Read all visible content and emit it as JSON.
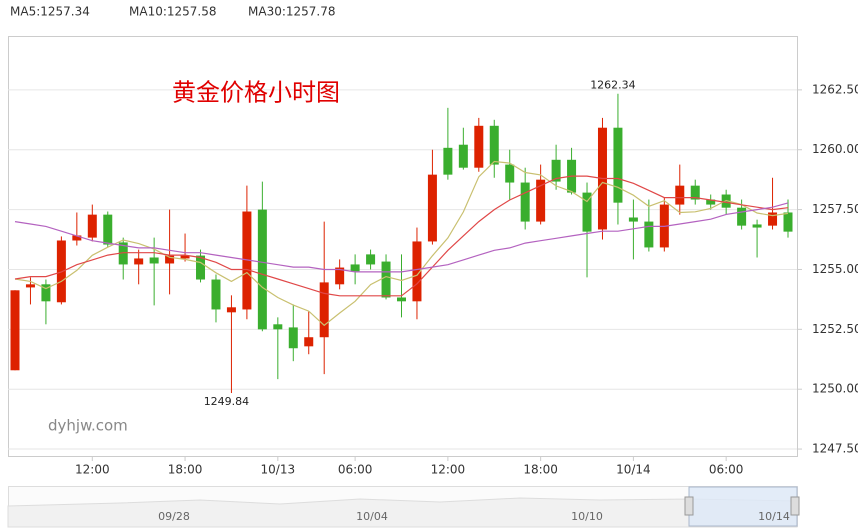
{
  "chart_data": {
    "type": "candlestick",
    "title": "黄金价格小时图",
    "watermark": "dyhjw.com",
    "up_color": "#dd2200",
    "down_color": "#3aae2e",
    "grid": true,
    "ylim": [
      1247.21,
      1264.75
    ],
    "yticks": [
      {
        "value": 1262.5,
        "label": "1262.50"
      },
      {
        "value": 1260,
        "label": "1260.00"
      },
      {
        "value": 1257.5,
        "label": "1257.50"
      },
      {
        "value": 1255,
        "label": "1255.00"
      },
      {
        "value": 1252.5,
        "label": "1252.50"
      },
      {
        "value": 1250,
        "label": "1250.00"
      },
      {
        "value": 1247.5,
        "label": "1247.50"
      }
    ],
    "categories": [
      null,
      null,
      null,
      null,
      null,
      "12:00",
      null,
      null,
      null,
      null,
      null,
      "18:00",
      null,
      null,
      null,
      null,
      null,
      "10/13",
      null,
      null,
      null,
      null,
      "06:00",
      null,
      null,
      null,
      null,
      null,
      "12:00",
      null,
      null,
      null,
      null,
      null,
      "18:00",
      null,
      null,
      null,
      null,
      null,
      "10/14",
      null,
      null,
      null,
      null,
      null,
      "06:00",
      null,
      null,
      null,
      null
    ],
    "open": [
      1250.79,
      1254.25,
      1254.38,
      1253.63,
      1256.21,
      1256.33,
      1257.29,
      1256.13,
      1255.21,
      1255.5,
      1255.25,
      1255.46,
      1255.58,
      1254.58,
      1253.21,
      1253.33,
      1257.5,
      1252.71,
      1252.58,
      1251.79,
      1252.17,
      1254.38,
      1255.21,
      1255.63,
      1255.33,
      1253.83,
      1253.67,
      1256.17,
      1260.08,
      1260.21,
      1259.25,
      1261,
      1259.38,
      1258.63,
      1257,
      1259.58,
      1259.58,
      1258.21,
      1256.67,
      1260.92,
      1257.17,
      1257,
      1255.92,
      1257.71,
      1258.5,
      1257.92,
      1258.13,
      1257.58,
      1256.88,
      1256.83,
      1257.38
    ],
    "high": [
      1254.13,
      1254.67,
      1254.58,
      1256.38,
      1257.38,
      1257.71,
      1257.42,
      1256.33,
      1255.83,
      1256.33,
      1257.5,
      1256.5,
      1255.83,
      1254.79,
      1253.92,
      1258.5,
      1258.67,
      1253,
      1253.54,
      1253.25,
      1257,
      1255.42,
      1255.63,
      1255.83,
      1255.63,
      1255.63,
      1256.75,
      1260,
      1261.75,
      1260.92,
      1261.33,
      1261.25,
      1260,
      1259.25,
      1259.38,
      1260.21,
      1260.08,
      1258.63,
      1261.33,
      1262.34,
      1257.92,
      1257.92,
      1258,
      1259.38,
      1258.75,
      1258.13,
      1258.33,
      1257.92,
      1257.08,
      1258.83,
      1257.92
    ],
    "low": [
      1250.79,
      1253.54,
      1252.71,
      1253.54,
      1256,
      1256.17,
      1255.92,
      1254.58,
      1254.38,
      1253.5,
      1253.96,
      1255.33,
      1254.46,
      1252.79,
      1249.84,
      1252.92,
      1252.42,
      1250.42,
      1251.17,
      1251.46,
      1250.63,
      1254.17,
      1254.38,
      1255,
      1253.75,
      1253,
      1252.92,
      1256.04,
      1258.75,
      1259.17,
      1259.08,
      1258.83,
      1257.92,
      1256.67,
      1256.88,
      1258.33,
      1258.13,
      1254.67,
      1256.25,
      1256.88,
      1255.42,
      1255.75,
      1255.75,
      1257.29,
      1257.71,
      1257.5,
      1257.29,
      1256.67,
      1255.5,
      1256.67,
      1256.33
    ],
    "close": [
      1254.13,
      1254.38,
      1253.67,
      1256.21,
      1256.42,
      1257.29,
      1256.04,
      1255.21,
      1255.46,
      1255.25,
      1255.58,
      1255.58,
      1254.58,
      1253.33,
      1253.42,
      1257.42,
      1252.5,
      1252.5,
      1251.71,
      1252.17,
      1254.46,
      1255.08,
      1254.92,
      1255.21,
      1253.83,
      1253.67,
      1256.17,
      1258.96,
      1258.96,
      1259.25,
      1261,
      1259.38,
      1258.63,
      1257,
      1258.75,
      1258.67,
      1258.21,
      1256.58,
      1260.92,
      1257.79,
      1257,
      1255.92,
      1257.71,
      1258.5,
      1257.92,
      1257.71,
      1257.58,
      1256.83,
      1256.75,
      1257.38,
      1256.58
    ],
    "series": [
      {
        "name": "MA5:1257.34",
        "color": "#c9c070",
        "values": [
          1254.6,
          1254.5,
          1254.2,
          1254.5,
          1254.96,
          1255.59,
          1255.93,
          1256.23,
          1256.08,
          1255.85,
          1255.51,
          1255.42,
          1255.29,
          1254.86,
          1254.5,
          1254.87,
          1254.25,
          1253.83,
          1253.51,
          1253.26,
          1252.67,
          1253.18,
          1253.67,
          1254.37,
          1254.7,
          1254.54,
          1254.76,
          1255.57,
          1256.32,
          1257.4,
          1258.87,
          1259.51,
          1259.44,
          1259.05,
          1258.95,
          1258.49,
          1258.25,
          1257.84,
          1258.63,
          1258.43,
          1258.1,
          1257.64,
          1257.87,
          1257.38,
          1257.41,
          1257.55,
          1257.88,
          1257.71,
          1257.36,
          1257.25,
          1257.34
        ]
      },
      {
        "name": "MA10:1257.58",
        "color": "#e04848",
        "values": [
          1254.6,
          1254.7,
          1254.7,
          1254.9,
          1255.2,
          1255.4,
          1255.6,
          1255.7,
          1255.7,
          1255.7,
          1255.6,
          1255.6,
          1255.5,
          1255.3,
          1255,
          1255,
          1254.8,
          1254.6,
          1254.4,
          1254.2,
          1254,
          1253.9,
          1253.9,
          1253.9,
          1253.9,
          1253.9,
          1254.4,
          1255.1,
          1255.8,
          1256.4,
          1257,
          1257.5,
          1257.9,
          1258.2,
          1258.5,
          1258.8,
          1258.9,
          1258.9,
          1258.8,
          1258.8,
          1258.6,
          1258.3,
          1258,
          1258,
          1258,
          1257.9,
          1257.8,
          1257.7,
          1257.6,
          1257.5,
          1257.58
        ]
      },
      {
        "name": "MA30:1257.78",
        "color": "#b463c0",
        "values": [
          1257,
          1256.9,
          1256.8,
          1256.6,
          1256.4,
          1256.2,
          1256.1,
          1256,
          1255.9,
          1255.9,
          1255.8,
          1255.7,
          1255.7,
          1255.6,
          1255.5,
          1255.4,
          1255.3,
          1255.2,
          1255.1,
          1255.1,
          1255,
          1255,
          1254.9,
          1254.9,
          1254.9,
          1254.9,
          1255,
          1255.1,
          1255.2,
          1255.4,
          1255.6,
          1255.8,
          1255.9,
          1256.1,
          1256.2,
          1256.3,
          1256.4,
          1256.5,
          1256.6,
          1256.6,
          1256.7,
          1256.8,
          1256.8,
          1256.9,
          1257,
          1257.1,
          1257.3,
          1257.4,
          1257.5,
          1257.6,
          1257.78
        ]
      }
    ],
    "annotations": [
      {
        "label": "1262.34",
        "value": 1262.34
      },
      {
        "label": "1249.84",
        "value": 1249.84
      }
    ],
    "navigator_labels": [
      "09/28",
      "10/04",
      "10/10",
      "10/14"
    ]
  }
}
